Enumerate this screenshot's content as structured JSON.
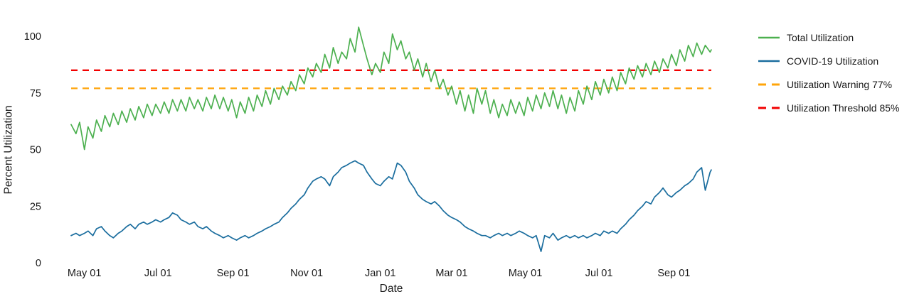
{
  "chart_data": {
    "type": "line",
    "title": "",
    "xlabel": "Date",
    "ylabel": "Percent Utilization",
    "background": "#ffffff",
    "grid": false,
    "legend_position": "right",
    "ylim": [
      0,
      107
    ],
    "y_ticks": [
      0,
      25,
      50,
      75,
      100
    ],
    "x_domain_days": [
      0,
      530
    ],
    "x_ticks": [
      {
        "day": 11,
        "label": "May 01"
      },
      {
        "day": 72,
        "label": "Jul 01"
      },
      {
        "day": 134,
        "label": "Sep 01"
      },
      {
        "day": 195,
        "label": "Nov 01"
      },
      {
        "day": 256,
        "label": "Jan 01"
      },
      {
        "day": 315,
        "label": "Mar 01"
      },
      {
        "day": 376,
        "label": "May 01"
      },
      {
        "day": 437,
        "label": "Jul 01"
      },
      {
        "day": 499,
        "label": "Sep 01"
      }
    ],
    "days": [
      0,
      4,
      7,
      11,
      14,
      18,
      21,
      25,
      28,
      32,
      35,
      39,
      42,
      46,
      49,
      53,
      56,
      60,
      63,
      67,
      70,
      74,
      77,
      81,
      84,
      88,
      91,
      95,
      98,
      102,
      105,
      109,
      112,
      116,
      119,
      123,
      126,
      130,
      133,
      137,
      140,
      144,
      147,
      151,
      154,
      158,
      161,
      165,
      168,
      172,
      175,
      179,
      182,
      186,
      189,
      193,
      196,
      200,
      203,
      207,
      210,
      214,
      217,
      221,
      224,
      228,
      231,
      235,
      238,
      242,
      245,
      249,
      252,
      256,
      259,
      263,
      266,
      270,
      273,
      277,
      280,
      284,
      287,
      291,
      294,
      298,
      301,
      305,
      308,
      312,
      315,
      319,
      322,
      326,
      329,
      333,
      336,
      340,
      343,
      347,
      350,
      354,
      357,
      361,
      364,
      368,
      371,
      375,
      378,
      382,
      385,
      389,
      392,
      396,
      399,
      403,
      406,
      410,
      413,
      417,
      420,
      424,
      427,
      431,
      434,
      438,
      441,
      445,
      448,
      452,
      455,
      459,
      462,
      466,
      469,
      473,
      476,
      480,
      483,
      487,
      490,
      494,
      497,
      501,
      504,
      508,
      511,
      515,
      518,
      522,
      525,
      529,
      530
    ],
    "series": [
      {
        "name": "Total Utilization",
        "color": "#4cb04f",
        "style": "solid",
        "values": [
          61,
          57,
          62,
          50,
          60,
          55,
          63,
          58,
          65,
          60,
          66,
          61,
          67,
          62,
          68,
          63,
          69,
          64,
          70,
          65,
          70,
          66,
          71,
          66,
          72,
          67,
          72,
          67,
          73,
          68,
          72,
          67,
          73,
          68,
          74,
          68,
          73,
          67,
          72,
          64,
          71,
          66,
          73,
          67,
          74,
          69,
          76,
          70,
          77,
          72,
          78,
          74,
          80,
          76,
          83,
          79,
          86,
          82,
          88,
          84,
          92,
          86,
          95,
          88,
          93,
          90,
          99,
          93,
          104,
          96,
          90,
          83,
          88,
          84,
          93,
          88,
          101,
          94,
          98,
          90,
          93,
          85,
          90,
          82,
          88,
          80,
          85,
          77,
          81,
          74,
          78,
          70,
          76,
          67,
          74,
          66,
          77,
          70,
          76,
          66,
          72,
          64,
          70,
          65,
          72,
          66,
          71,
          65,
          73,
          67,
          74,
          68,
          75,
          69,
          76,
          68,
          74,
          66,
          73,
          67,
          76,
          70,
          78,
          72,
          80,
          74,
          81,
          75,
          82,
          76,
          84,
          79,
          86,
          81,
          87,
          82,
          88,
          83,
          89,
          84,
          90,
          86,
          92,
          87,
          94,
          89,
          96,
          91,
          97,
          92,
          96,
          93,
          94
        ]
      },
      {
        "name": "COVID-19 Utilization",
        "color": "#1a6d9e",
        "style": "solid",
        "values": [
          12,
          13,
          12,
          13,
          14,
          12,
          15,
          16,
          14,
          12,
          11,
          13,
          14,
          16,
          17,
          15,
          17,
          18,
          17,
          18,
          19,
          18,
          19,
          20,
          22,
          21,
          19,
          18,
          17,
          18,
          16,
          15,
          16,
          14,
          13,
          12,
          11,
          12,
          11,
          10,
          11,
          12,
          11,
          12,
          13,
          14,
          15,
          16,
          17,
          18,
          20,
          22,
          24,
          26,
          28,
          30,
          33,
          36,
          37,
          38,
          37,
          34,
          38,
          40,
          42,
          43,
          44,
          45,
          44,
          43,
          40,
          37,
          35,
          34,
          36,
          38,
          37,
          44,
          43,
          40,
          36,
          33,
          30,
          28,
          27,
          26,
          27,
          25,
          23,
          21,
          20,
          19,
          18,
          16,
          15,
          14,
          13,
          12,
          12,
          11,
          12,
          13,
          12,
          13,
          12,
          13,
          14,
          13,
          12,
          11,
          12,
          5,
          12,
          11,
          13,
          10,
          11,
          12,
          11,
          12,
          11,
          12,
          11,
          12,
          13,
          12,
          14,
          13,
          14,
          13,
          15,
          17,
          19,
          21,
          23,
          25,
          27,
          26,
          29,
          31,
          33,
          30,
          29,
          31,
          32,
          34,
          35,
          37,
          40,
          42,
          32,
          40,
          41
        ]
      }
    ],
    "reference_lines": [
      {
        "name": "Utilization Warning 77%",
        "value": 77,
        "color": "#ffa40a",
        "style": "dashed"
      },
      {
        "name": "Utilization Threshold 85%",
        "value": 85,
        "color": "#f20000",
        "style": "dashed"
      }
    ],
    "legend": [
      {
        "label": "Total Utilization",
        "color": "#4cb04f",
        "style": "solid"
      },
      {
        "label": "COVID-19 Utilization",
        "color": "#1a6d9e",
        "style": "solid"
      },
      {
        "label": "Utilization Warning 77%",
        "color": "#ffa40a",
        "style": "dashed"
      },
      {
        "label": "Utilization Threshold 85%",
        "color": "#f20000",
        "style": "dashed"
      }
    ]
  }
}
